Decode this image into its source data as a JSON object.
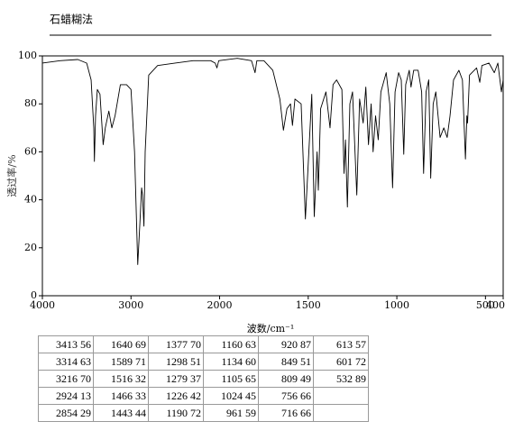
{
  "chart_data": {
    "type": "line",
    "title": "石蜡糊法",
    "y_label": "透过率/%",
    "x_label": "波数/cm⁻¹",
    "color": "#000000",
    "xlim": [
      4000,
      400
    ],
    "x_scale_change": 2000,
    "x_scale_factor": 2,
    "xticks": [
      4000,
      3000,
      2000,
      1500,
      1000,
      500,
      400
    ],
    "ylim": [
      0,
      100
    ],
    "yticks": [
      0,
      20,
      40,
      60,
      80,
      100
    ],
    "x": [
      4000,
      3800,
      3600,
      3500,
      3450,
      3420,
      3413,
      3400,
      3380,
      3350,
      3314,
      3290,
      3250,
      3216,
      3180,
      3120,
      3050,
      3000,
      2960,
      2924,
      2900,
      2880,
      2870,
      2854,
      2840,
      2800,
      2700,
      2500,
      2300,
      2100,
      2050,
      2030,
      2010,
      1900,
      1820,
      1800,
      1790,
      1750,
      1700,
      1660,
      1640,
      1620,
      1600,
      1589,
      1575,
      1540,
      1516,
      1500,
      1480,
      1466,
      1450,
      1443,
      1430,
      1400,
      1377,
      1360,
      1340,
      1310,
      1298,
      1290,
      1279,
      1265,
      1250,
      1226,
      1210,
      1190,
      1175,
      1160,
      1145,
      1134,
      1120,
      1105,
      1090,
      1060,
      1040,
      1024,
      1010,
      990,
      975,
      961,
      950,
      930,
      920,
      905,
      880,
      860,
      849,
      835,
      820,
      809,
      795,
      780,
      756,
      735,
      716,
      700,
      680,
      650,
      630,
      613,
      605,
      601,
      590,
      550,
      532,
      520,
      480,
      450,
      430,
      410,
      400
    ],
    "values": [
      97,
      98,
      98.5,
      97,
      90,
      70,
      56,
      75,
      86,
      84,
      63,
      70,
      77,
      70,
      75,
      88,
      88,
      86,
      60,
      13,
      30,
      45,
      42,
      29,
      60,
      92,
      96,
      97,
      98,
      98,
      97,
      95,
      98,
      99,
      98,
      93,
      98,
      98,
      94,
      82,
      69,
      78,
      80,
      71,
      82,
      80,
      32,
      55,
      84,
      33,
      60,
      44,
      78,
      85,
      70,
      88,
      90,
      86,
      51,
      65,
      37,
      80,
      85,
      42,
      82,
      72,
      87,
      63,
      80,
      60,
      75,
      65,
      85,
      93,
      80,
      45,
      85,
      93,
      90,
      59,
      88,
      94,
      87,
      94,
      94,
      85,
      51,
      85,
      90,
      49,
      80,
      85,
      66,
      70,
      66,
      75,
      90,
      94,
      90,
      57,
      75,
      72,
      92,
      95,
      89,
      96,
      97,
      93,
      97,
      85,
      90
    ]
  },
  "table": {
    "rows": [
      [
        "3413 56",
        "1640 69",
        "1377 70",
        "1160 63",
        "920 87",
        "613 57"
      ],
      [
        "3314 63",
        "1589 71",
        "1298 51",
        "1134 60",
        "849 51",
        "601 72"
      ],
      [
        "3216 70",
        "1516 32",
        "1279 37",
        "1105 65",
        "809 49",
        "532 89"
      ],
      [
        "2924 13",
        "1466 33",
        "1226 42",
        "1024 45",
        "756 66"
      ],
      [
        "2854 29",
        "1443 44",
        "1190 72",
        "961 59",
        "716 66"
      ]
    ]
  }
}
